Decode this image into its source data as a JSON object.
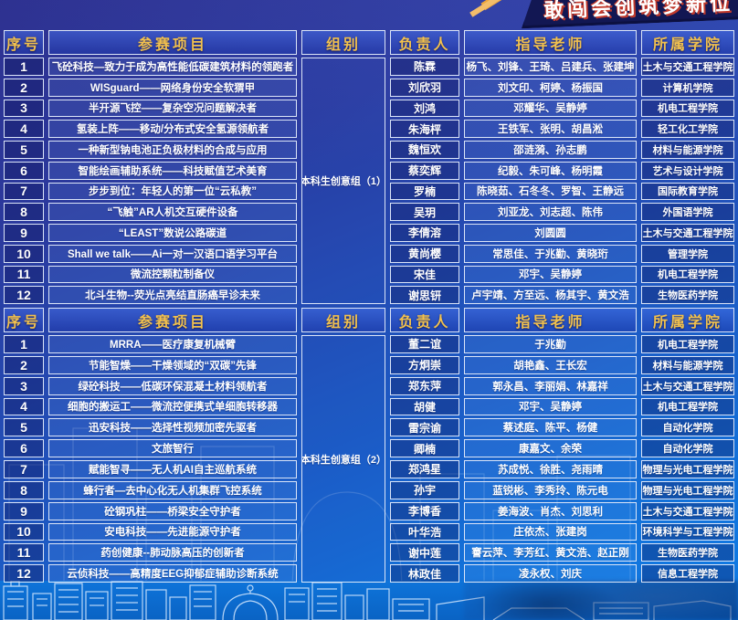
{
  "banner": {
    "slogan": "敢闯会创筑梦新位"
  },
  "accent_colors": {
    "header_gold": "#f2c14e",
    "table_border": "#dbe5f8",
    "banner_red": "#c23a2c",
    "background_blue": "#1b5ec8"
  },
  "tables": [
    {
      "columns": {
        "index": "序号",
        "project": "参赛项目",
        "group": "组别",
        "leader": "负责人",
        "advisors": "指导老师",
        "college": "所属学院"
      },
      "group_label": "本科生创意组（1）",
      "rows": [
        {
          "index": "1",
          "project": "飞砼科技—致力于成为高性能低碳建筑材料的领跑者",
          "leader": "陈霖",
          "advisors": "杨飞、刘锋、王琦、吕建兵、张建坤",
          "college": "土木与交通工程学院"
        },
        {
          "index": "2",
          "project": "WISguard——网络身份安全软猬甲",
          "leader": "刘欣羽",
          "advisors": "刘文印、柯婷、杨振国",
          "college": "计算机学院"
        },
        {
          "index": "3",
          "project": "半开源飞控——复杂空况问题解决者",
          "leader": "刘鸿",
          "advisors": "邓耀华、吴静婷",
          "college": "机电工程学院"
        },
        {
          "index": "4",
          "project": "氢装上阵——移动/分布式安全氢源领航者",
          "leader": "朱海枰",
          "advisors": "王铁军、张明、胡昌淞",
          "college": "轻工化工学院"
        },
        {
          "index": "5",
          "project": "一种新型钠电池正负极材料的合成与应用",
          "leader": "魏恒欢",
          "advisors": "邵涟漪、孙志鹏",
          "college": "材料与能源学院"
        },
        {
          "index": "6",
          "project": "智能绘画辅助系统——科技赋值艺术美育",
          "leader": "蔡奕辉",
          "advisors": "纪毅、朱可峰、杨明霞",
          "college": "艺术与设计学院"
        },
        {
          "index": "7",
          "project": "步步到位：年轻人的第一位“云私教”",
          "leader": "罗楠",
          "advisors": "陈晓茹、石冬冬、罗智、王静远",
          "college": "国际教育学院"
        },
        {
          "index": "8",
          "project": "“飞触”AR人机交互硬件设备",
          "leader": "吴玥",
          "advisors": "刘亚龙、刘志超、陈伟",
          "college": "外国语学院"
        },
        {
          "index": "9",
          "project": "“LEAST”数说公路碳道",
          "leader": "李倩溶",
          "advisors": "刘圆圆",
          "college": "土木与交通工程学院"
        },
        {
          "index": "10",
          "project": "Shall we talk——Ai一对一汉语口语学习平台",
          "leader": "黄尚樱",
          "advisors": "常思佳、于兆勤、黄晓珩",
          "college": "管理学院"
        },
        {
          "index": "11",
          "project": "微流控颗粒制备仪",
          "leader": "宋佳",
          "advisors": "邓宇、吴静婷",
          "college": "机电工程学院"
        },
        {
          "index": "12",
          "project": "北斗生物--荧光点亮结直肠癌早诊未来",
          "leader": "谢思钘",
          "advisors": "卢宇靖、方至远、杨其宇、黄文浩",
          "college": "生物医药学院"
        }
      ]
    },
    {
      "columns": {
        "index": "序号",
        "project": "参赛项目",
        "group": "组别",
        "leader": "负责人",
        "advisors": "指导老师",
        "college": "所属学院"
      },
      "group_label": "本科生创意组（2）",
      "rows": [
        {
          "index": "1",
          "project": "MRRA——医疗康复机械臂",
          "leader": "董二谊",
          "advisors": "于兆勤",
          "college": "机电工程学院"
        },
        {
          "index": "2",
          "project": "节能智燥——干燥领域的“双碳”先锋",
          "leader": "方炯崇",
          "advisors": "胡艳鑫、王长宏",
          "college": "材料与能源学院"
        },
        {
          "index": "3",
          "project": "绿砼科技——低碳环保混凝土材料领航者",
          "leader": "郑东萍",
          "advisors": "郭永昌、李丽娟、林嘉祥",
          "college": "土木与交通工程学院"
        },
        {
          "index": "4",
          "project": "细胞的搬运工——微流控便携式单细胞转移器",
          "leader": "胡健",
          "advisors": "邓宇、吴静婷",
          "college": "机电工程学院"
        },
        {
          "index": "5",
          "project": "迅安科技——选择性视频加密先驱者",
          "leader": "雷宗谕",
          "advisors": "蔡述庭、陈平、杨健",
          "college": "自动化学院"
        },
        {
          "index": "6",
          "project": "文旅智行",
          "leader": "卿楠",
          "advisors": "康嘉文、余荣",
          "college": "自动化学院"
        },
        {
          "index": "7",
          "project": "赋能智寻——无人机AI自主巡航系统",
          "leader": "郑鸿星",
          "advisors": "苏成悦、徐胜、尧雨晴",
          "college": "物理与光电工程学院"
        },
        {
          "index": "8",
          "project": "蜂行者—去中心化无人机集群飞控系统",
          "leader": "孙宇",
          "advisors": "蓝锐彬、李秀玲、陈元电",
          "college": "物理与光电工程学院"
        },
        {
          "index": "9",
          "project": "砼钢巩柱——桥梁安全守护者",
          "leader": "李博香",
          "advisors": "姜海波、肖杰、刘思利",
          "college": "土木与交通工程学院"
        },
        {
          "index": "10",
          "project": "安电科技——先进能源守护者",
          "leader": "叶华浩",
          "advisors": "庄依杰、张建岗",
          "college": "环境科学与工程学院"
        },
        {
          "index": "11",
          "project": "药创健康--肺动脉高压的创新者",
          "leader": "谢中莲",
          "advisors": "謇云萍、李芳红、黄文浩、赵正刚",
          "college": "生物医药学院"
        },
        {
          "index": "12",
          "project": "云侦科技——高精度EEG抑郁症辅助诊断系统",
          "leader": "林政佳",
          "advisors": "凌永权、刘庆",
          "college": "信息工程学院"
        }
      ]
    }
  ]
}
